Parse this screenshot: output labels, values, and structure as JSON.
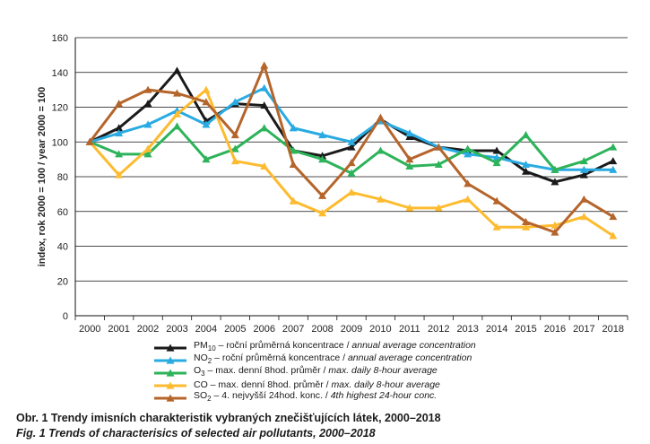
{
  "chart_data": {
    "type": "line",
    "title": "",
    "xlabel": "",
    "ylabel": "index, rok 2000 = 100 / year 2000 = 100",
    "ylim": [
      0,
      160
    ],
    "yticks": [
      0,
      20,
      40,
      60,
      80,
      100,
      120,
      140,
      160
    ],
    "grid": true,
    "legend_position": "bottom",
    "x": [
      "2000",
      "2001",
      "2002",
      "2003",
      "2004",
      "2005",
      "2006",
      "2007",
      "2008",
      "2009",
      "2010",
      "2011",
      "2012",
      "2013",
      "2014",
      "2015",
      "2016",
      "2017",
      "2018"
    ],
    "series": [
      {
        "id": "pm10",
        "name_main": "PM",
        "name_sub": "10",
        "label_cz": " – roční průměrná koncentrace / ",
        "label_en": "annual average concentration",
        "color": "#1a1a1a",
        "marker": "triangle",
        "values": [
          100,
          108,
          122,
          141,
          112,
          122,
          121,
          95,
          92,
          97,
          113,
          103,
          97,
          95,
          95,
          83,
          77,
          81,
          89
        ]
      },
      {
        "id": "no2",
        "name_main": "NO",
        "name_sub": "2",
        "label_cz": " – roční průměrná koncentrace / ",
        "label_en": "annual average concentration",
        "color": "#29abe2",
        "marker": "triangle",
        "values": [
          100,
          105,
          110,
          118,
          110,
          123,
          131,
          108,
          104,
          100,
          112,
          105,
          97,
          93,
          91,
          87,
          84,
          84,
          84
        ]
      },
      {
        "id": "o3",
        "name_main": "O",
        "name_sub": "3",
        "label_cz": " – max. denní 8hod. průměr / ",
        "label_en": "max. daily 8-hour average",
        "color": "#2db35a",
        "marker": "triangle",
        "values": [
          100,
          93,
          93,
          109,
          90,
          96,
          108,
          95,
          90,
          82,
          95,
          86,
          87,
          96,
          88,
          104,
          84,
          89,
          97
        ]
      },
      {
        "id": "co",
        "name_main": "CO",
        "name_sub": "",
        "label_cz": " – max. denní 8hod. průměr / ",
        "label_en": "max. daily 8-hour average",
        "color": "#fdbb2f",
        "marker": "triangle",
        "values": [
          100,
          81,
          96,
          116,
          130,
          89,
          86,
          66,
          59,
          71,
          67,
          62,
          62,
          67,
          51,
          51,
          52,
          57,
          46
        ]
      },
      {
        "id": "so2",
        "name_main": "SO",
        "name_sub": "2",
        "label_cz": " – 4. nejvyšší 24hod. konc. / ",
        "label_en": "4th highest 24-hour conc.",
        "color": "#b5652b",
        "marker": "triangle",
        "values": [
          100,
          122,
          130,
          128,
          123,
          104,
          144,
          87,
          69,
          88,
          114,
          90,
          97,
          76,
          66,
          54,
          48,
          67,
          57
        ]
      }
    ]
  },
  "captions": {
    "cz": "Obr. 1 Trendy imisních charakteristik vybraných znečišťujících látek, 2000–2018",
    "en": "Fig. 1 Trends of characterisics of selected air pollutants, 2000–2018"
  }
}
